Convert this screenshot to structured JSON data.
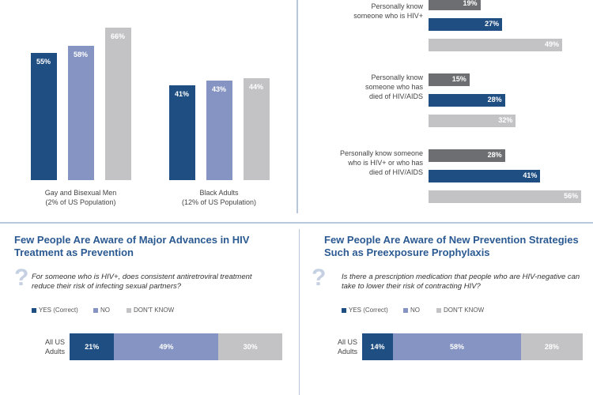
{
  "chart_data": [
    {
      "type": "bar",
      "categories": [
        "Gay and Bisexual Men\n(2% of US Population)",
        "Black Adults\n(12% of US Population)"
      ],
      "series": [
        {
          "color": "#1f4e82",
          "values": [
            55,
            41
          ],
          "value_labels": [
            "55%",
            "41%"
          ]
        },
        {
          "color": "#8594c2",
          "values": [
            58,
            43
          ],
          "value_labels": [
            "58%",
            "43%"
          ]
        },
        {
          "color": "#c3c3c5",
          "values": [
            66,
            44
          ],
          "value_labels": [
            "66%",
            "44%"
          ]
        }
      ],
      "ylim": [
        0,
        70
      ]
    },
    {
      "type": "barh",
      "categories": [
        "Personally know\nsomeone who is HIV+",
        "Personally know\nsomeone who has\ndied of HIV/AIDS",
        "Personally know someone\nwho is HIV+ or who has\ndied of HIV/AIDS"
      ],
      "series": [
        {
          "color": "#6d6e71",
          "values": [
            19,
            15,
            28
          ],
          "value_labels": [
            "19%",
            "15%",
            "28%"
          ]
        },
        {
          "color": "#1f4e82",
          "values": [
            27,
            28,
            41
          ],
          "value_labels": [
            "27%",
            "28%",
            "41%"
          ]
        },
        {
          "color": "#c3c3c5",
          "values": [
            49,
            32,
            56
          ],
          "value_labels": [
            "49%",
            "32%",
            "56%"
          ]
        }
      ],
      "xlim": [
        0,
        60
      ]
    },
    {
      "type": "stacked_barh",
      "title": "Few People Are Aware of Major Advances in HIV Treatment as Prevention",
      "subtitle": "For someone who is HIV+, does consistent antiretroviral treatment reduce their risk of infecting sexual partners?",
      "categories": [
        "All US\nAdults"
      ],
      "series": [
        {
          "name": "YES (Correct)",
          "color": "#1f4e82",
          "values": [
            21
          ],
          "value_labels": [
            "21%"
          ]
        },
        {
          "name": "NO",
          "color": "#8594c2",
          "values": [
            49
          ],
          "value_labels": [
            "49%"
          ]
        },
        {
          "name": "DON'T KNOW",
          "color": "#c3c3c5",
          "values": [
            30
          ],
          "value_labels": [
            "30%"
          ]
        }
      ],
      "xlim": [
        0,
        100
      ]
    },
    {
      "type": "stacked_barh",
      "title": "Few People Are Aware of New Prevention Strategies Such as Preexposure Prophylaxis",
      "subtitle": "Is there a prescription medication that people who are HIV-negative can take to lower their risk of contracting HIV?",
      "categories": [
        "All US\nAdults"
      ],
      "series": [
        {
          "name": "YES (Correct)",
          "color": "#1f4e82",
          "values": [
            14
          ],
          "value_labels": [
            "14%"
          ]
        },
        {
          "name": "NO",
          "color": "#8594c2",
          "values": [
            58
          ],
          "value_labels": [
            "58%"
          ]
        },
        {
          "name": "DON'T KNOW",
          "color": "#c3c3c5",
          "values": [
            28
          ],
          "value_labels": [
            "28%"
          ]
        }
      ],
      "xlim": [
        0,
        100
      ]
    }
  ]
}
